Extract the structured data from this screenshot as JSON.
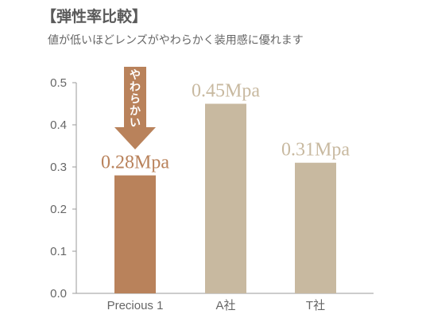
{
  "header": {
    "title": "【弾性率比較】",
    "subtitle": "値が低いほどレンズがやわらかく装用感に優れます"
  },
  "annotation": {
    "arrow_text": "やわらかい"
  },
  "colors": {
    "highlight": "#b9825b",
    "other": "#c8b9a0",
    "axis": "#9a9a9a"
  },
  "chart_data": {
    "type": "bar",
    "title": "【弾性率比較】",
    "subtitle": "値が低いほどレンズがやわらかく装用感に優れます",
    "categories": [
      "Precious 1",
      "A社",
      "T社"
    ],
    "values": [
      0.28,
      0.45,
      0.31
    ],
    "data_labels": [
      "0.28Mpa",
      "0.45Mpa",
      "0.31Mpa"
    ],
    "yticks": [
      "0.0",
      "0.1",
      "0.2",
      "0.3",
      "0.4",
      "0.5"
    ],
    "ylim": [
      0,
      0.5
    ],
    "xlabel": "",
    "ylabel": "",
    "grid": false,
    "highlight_index": 0
  }
}
